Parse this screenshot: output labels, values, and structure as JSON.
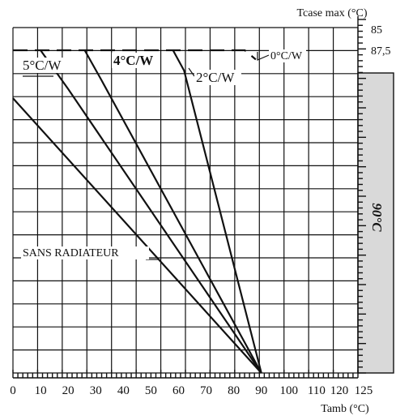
{
  "chart_data": {
    "type": "line",
    "title": "",
    "xlabel": "Tamb (°C)",
    "ylabel": "Tcase max (°C)",
    "xlim": [
      0,
      125
    ],
    "ylim": [
      0,
      87.5
    ],
    "x_ticks": [
      "0",
      "10",
      "20",
      "30",
      "40",
      "50",
      "60",
      "70",
      "80",
      "90",
      "100",
      "110",
      "120",
      "125"
    ],
    "y_ticks": [
      "85",
      "87,5"
    ],
    "grid": true,
    "band": {
      "label": "90°C",
      "x_from": 120,
      "x_to": 125
    },
    "series": [
      {
        "name": "0°C/W",
        "style": "dashed",
        "points": [
          [
            0,
            87.5
          ],
          [
            84,
            87.5
          ],
          [
            88,
            85
          ]
        ]
      },
      {
        "name": "2°C/W",
        "points": [
          [
            58,
            87.5
          ],
          [
            62,
            82
          ],
          [
            90,
            0
          ]
        ]
      },
      {
        "name": "4°C/W",
        "points": [
          [
            26,
            87.5
          ],
          [
            32,
            79.5
          ],
          [
            90,
            0
          ]
        ]
      },
      {
        "name": "5°C/W",
        "points": [
          [
            10,
            87.5
          ],
          [
            20,
            77
          ],
          [
            90,
            0
          ]
        ]
      },
      {
        "name": "SANS RADIATEUR",
        "points": [
          [
            0,
            74.5
          ],
          [
            90,
            0
          ]
        ]
      }
    ]
  }
}
